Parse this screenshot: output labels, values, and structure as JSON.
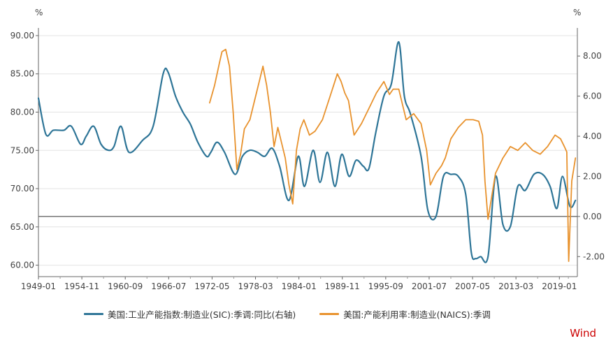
{
  "chart_data": {
    "type": "line",
    "title": "",
    "left_axis": {
      "unit": "%",
      "ylim": [
        58.5,
        91.0
      ],
      "ticks": [
        60,
        65,
        70,
        75,
        80,
        85,
        90
      ],
      "tick_labels": [
        "60.00",
        "65.00",
        "70.00",
        "75.00",
        "80.00",
        "85.00",
        "90.00"
      ]
    },
    "right_axis": {
      "unit": "%",
      "ylim": [
        -3.0,
        9.4
      ],
      "ticks": [
        -2,
        0,
        2,
        4,
        6,
        8
      ],
      "tick_labels": [
        "-2.00",
        "0.00",
        "2.00",
        "4.00",
        "6.00",
        "8.00"
      ]
    },
    "x_axis": {
      "range": [
        "1949-01",
        "2021-06"
      ],
      "ticks": [
        "1949-01",
        "1954-11",
        "1960-09",
        "1966-07",
        "1972-05",
        "1978-03",
        "1984-01",
        "1989-11",
        "1995-09",
        "2001-07",
        "2007-05",
        "2013-03",
        "2019-01"
      ]
    },
    "grid": "horizontal",
    "legend_position": "bottom",
    "series": [
      {
        "name": "美国:工业产能指数:制造业(SIC):季调:同比(右轴)",
        "axis": "right",
        "color": "#2e7597",
        "x": [
          "1949-01",
          "1950-01",
          "1951-01",
          "1952-06",
          "1953-06",
          "1954-09",
          "1955-06",
          "1956-06",
          "1957-06",
          "1958-06",
          "1959-03",
          "1960-02",
          "1961-03",
          "1963-01",
          "1964-06",
          "1965-10",
          "1966-06",
          "1967-06",
          "1968-06",
          "1969-06",
          "1970-06",
          "1971-08",
          "1972-03",
          "1973-01",
          "1974-01",
          "1975-06",
          "1976-06",
          "1977-06",
          "1978-06",
          "1979-06",
          "1980-06",
          "1981-06",
          "1982-09",
          "1983-12",
          "1984-10",
          "1985-12",
          "1986-11",
          "1987-11",
          "1988-11",
          "1989-10",
          "1990-10",
          "1991-09",
          "1992-09",
          "1993-06",
          "1994-05",
          "1995-06",
          "1996-06",
          "1997-06",
          "1998-03",
          "1999-01",
          "2000-06",
          "2001-05",
          "2002-06",
          "2003-06",
          "2004-06",
          "2005-06",
          "2006-06",
          "2007-03",
          "2007-10",
          "2008-06",
          "2009-06",
          "2010-06",
          "2011-06",
          "2012-06",
          "2013-06",
          "2014-06",
          "2015-08",
          "2016-10",
          "2017-10",
          "2018-09",
          "2019-06",
          "2020-06",
          "2021-03"
        ],
        "values": [
          5.9,
          4.1,
          4.3,
          4.3,
          4.5,
          3.6,
          4.0,
          4.5,
          3.6,
          3.3,
          3.5,
          4.5,
          3.2,
          3.8,
          4.5,
          7.1,
          7.2,
          6.0,
          5.2,
          4.6,
          3.7,
          3.0,
          3.2,
          3.7,
          3.2,
          2.1,
          3.0,
          3.3,
          3.2,
          3.0,
          3.4,
          2.5,
          0.8,
          3.0,
          1.5,
          3.3,
          1.7,
          3.2,
          1.5,
          3.1,
          2.0,
          2.8,
          2.5,
          2.4,
          4.2,
          6.0,
          6.6,
          8.7,
          6.0,
          5.1,
          3.0,
          0.3,
          0.0,
          2.0,
          2.1,
          2.0,
          1.1,
          -1.8,
          -2.1,
          -2.0,
          -2.0,
          2.0,
          -0.4,
          -0.5,
          1.5,
          1.3,
          2.1,
          2.1,
          1.5,
          0.4,
          2.0,
          0.5,
          0.8
        ]
      },
      {
        "name": "美国:产能利用率:制造业(NAICS):季调",
        "axis": "left",
        "color": "#e8922d",
        "x": [
          "1972-01",
          "1972-09",
          "1973-05",
          "1973-09",
          "1974-03",
          "1974-09",
          "1975-03",
          "1975-09",
          "1976-03",
          "1976-09",
          "1977-06",
          "1978-03",
          "1978-09",
          "1979-03",
          "1979-09",
          "1980-03",
          "1980-09",
          "1981-03",
          "1981-09",
          "1982-03",
          "1982-09",
          "1983-03",
          "1983-09",
          "1984-03",
          "1984-09",
          "1985-06",
          "1986-03",
          "1987-03",
          "1988-03",
          "1988-09",
          "1989-03",
          "1989-09",
          "1990-03",
          "1990-09",
          "1991-06",
          "1992-06",
          "1993-06",
          "1994-06",
          "1995-06",
          "1996-03",
          "1996-09",
          "1997-06",
          "1998-06",
          "1999-06",
          "2000-06",
          "2001-03",
          "2001-09",
          "2002-06",
          "2003-03",
          "2003-09",
          "2004-06",
          "2005-06",
          "2006-06",
          "2007-06",
          "2008-03",
          "2008-09",
          "2009-01",
          "2009-06",
          "2010-06",
          "2011-06",
          "2012-06",
          "2013-06",
          "2014-06",
          "2015-06",
          "2016-06",
          "2017-06",
          "2018-06",
          "2019-03",
          "2019-09",
          "2020-01",
          "2020-04",
          "2020-09",
          "2021-03"
        ],
        "values": [
          81.2,
          83.5,
          86.5,
          87.9,
          88.2,
          86.0,
          80.0,
          72.5,
          74.5,
          77.8,
          79.0,
          82.0,
          84.0,
          86.0,
          83.5,
          80.0,
          75.5,
          78.0,
          76.0,
          74.0,
          70.5,
          68.0,
          75.0,
          77.8,
          79.0,
          77.0,
          77.5,
          79.0,
          82.0,
          83.5,
          85.0,
          84.0,
          82.5,
          81.5,
          77.0,
          78.5,
          80.5,
          82.5,
          84.0,
          82.3,
          83.0,
          83.0,
          79.0,
          79.8,
          78.5,
          75.0,
          70.5,
          72.0,
          73.0,
          74.0,
          76.5,
          78.0,
          79.0,
          79.0,
          78.8,
          77.0,
          71.0,
          66.0,
          72.0,
          74.0,
          75.5,
          75.0,
          76.0,
          75.0,
          74.5,
          75.5,
          77.0,
          76.5,
          75.5,
          74.8,
          60.5,
          71.0,
          74.0
        ]
      }
    ],
    "watermark": "Wind"
  }
}
